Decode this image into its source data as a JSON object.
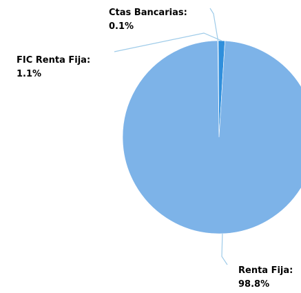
{
  "chart_data": {
    "type": "pie",
    "title": "",
    "slices": [
      {
        "label": "Renta Fija",
        "value": 98.8,
        "value_label": "98.8%",
        "color": "#7db3e8"
      },
      {
        "label": "FIC Renta Fija",
        "value": 1.1,
        "value_label": "1.1%",
        "color": "#2f8fdc"
      },
      {
        "label": "Ctas Bancarias",
        "value": 0.1,
        "value_label": "0.1%",
        "color": "#1e6fc0"
      }
    ],
    "data_label_names": [
      "Renta Fija:",
      "FIC Renta Fija:",
      "Ctas Bancarias:"
    ],
    "legend": "none",
    "leader_line_color": "#9ecbe9"
  }
}
